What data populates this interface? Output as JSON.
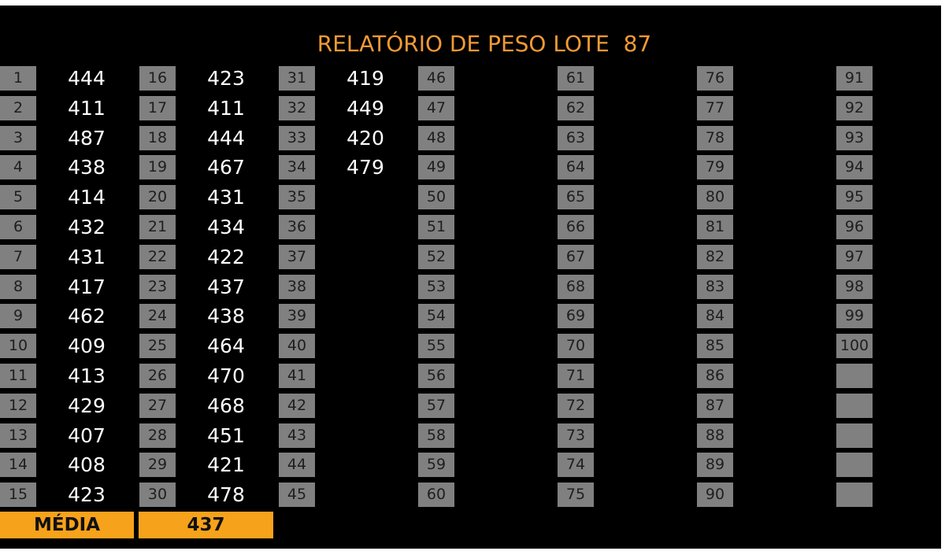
{
  "title": "RELATÓRIO DE PESO LOTE  87",
  "groups": [
    {
      "indices": [
        1,
        2,
        3,
        4,
        5,
        6,
        7,
        8,
        9,
        10,
        11,
        12,
        13,
        14,
        15
      ],
      "values": [
        444,
        411,
        487,
        438,
        414,
        432,
        431,
        417,
        462,
        409,
        413,
        429,
        407,
        408,
        423
      ]
    },
    {
      "indices": [
        16,
        17,
        18,
        19,
        20,
        21,
        22,
        23,
        24,
        25,
        26,
        27,
        28,
        29,
        30
      ],
      "values": [
        423,
        411,
        444,
        467,
        431,
        434,
        422,
        437,
        438,
        464,
        470,
        468,
        451,
        421,
        478
      ]
    },
    {
      "indices": [
        31,
        32,
        33,
        34,
        35,
        36,
        37,
        38,
        39,
        40,
        41,
        42,
        43,
        44,
        45
      ],
      "values": [
        419,
        449,
        420,
        479
      ]
    },
    {
      "indices": [
        46,
        47,
        48,
        49,
        50,
        51,
        52,
        53,
        54,
        55,
        56,
        57,
        58,
        59,
        60
      ],
      "values": []
    },
    {
      "indices": [
        61,
        62,
        63,
        64,
        65,
        66,
        67,
        68,
        69,
        70,
        71,
        72,
        73,
        74,
        75
      ],
      "values": []
    },
    {
      "indices": [
        76,
        77,
        78,
        79,
        80,
        81,
        82,
        83,
        84,
        85,
        86,
        87,
        88,
        89,
        90
      ],
      "values": []
    },
    {
      "indices": [
        91,
        92,
        93,
        94,
        95,
        96,
        97,
        98,
        99,
        100
      ],
      "values": []
    }
  ],
  "footer": {
    "label": "MÉDIA",
    "value": 437
  }
}
